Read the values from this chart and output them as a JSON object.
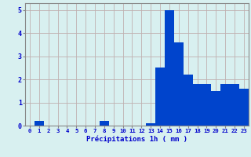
{
  "values": [
    0,
    0.2,
    0,
    0,
    0,
    0,
    0,
    0,
    0.2,
    0,
    0,
    0,
    0,
    0.1,
    2.5,
    5.0,
    3.6,
    2.2,
    1.8,
    1.8,
    1.5,
    1.8,
    1.8,
    1.6
  ],
  "bar_color": "#0044cc",
  "background_color": "#d8f0f0",
  "grid_color": "#c0b0b0",
  "xlabel": "Précipitations 1h ( mm )",
  "xlabel_color": "#0000cc",
  "tick_color": "#0000cc",
  "ylim": [
    0,
    5.3
  ],
  "yticks": [
    0,
    1,
    2,
    3,
    4,
    5
  ],
  "axis_color": "#888888"
}
